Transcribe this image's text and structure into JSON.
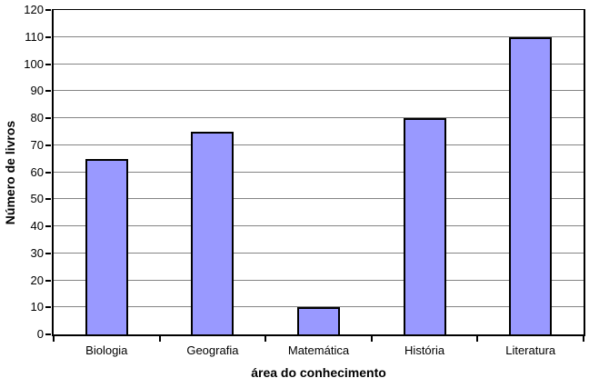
{
  "chart_data": {
    "type": "bar",
    "categories": [
      "Biologia",
      "Geografia",
      "Matemática",
      "História",
      "Literatura"
    ],
    "values": [
      65,
      75,
      10,
      80,
      110
    ],
    "title": "",
    "xlabel": "área do conhecimento",
    "ylabel": "Número de livros",
    "ylim": [
      0,
      120
    ],
    "ytick_step": 10,
    "yticks": [
      0,
      10,
      20,
      30,
      40,
      50,
      60,
      70,
      80,
      90,
      100,
      110,
      120
    ],
    "grid": true,
    "legend": "none",
    "colors": {
      "bar_fill": "#9999FF",
      "bar_border": "#000000",
      "gridline": "#848484",
      "axis": "#000000",
      "background": "#FFFFFF",
      "text": "#000000"
    }
  }
}
